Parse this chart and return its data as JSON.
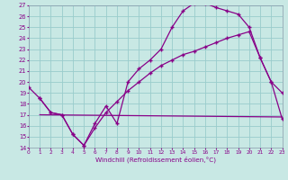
{
  "xlabel": "Windchill (Refroidissement éolien,°C)",
  "bg_color": "#c8e8e4",
  "grid_color": "#99cccc",
  "line_color": "#880088",
  "line1_x": [
    0,
    1,
    2,
    3,
    4,
    5,
    6,
    7,
    8,
    9,
    10,
    11,
    12,
    13,
    14,
    15,
    16,
    17,
    18,
    19,
    20,
    21,
    22,
    23
  ],
  "line1_y": [
    19.5,
    18.5,
    17.2,
    17.0,
    15.2,
    14.2,
    16.2,
    17.8,
    16.2,
    20.0,
    21.2,
    22.0,
    23.0,
    25.0,
    26.5,
    27.2,
    27.2,
    26.8,
    26.5,
    26.2,
    25.0,
    22.2,
    20.0,
    19.0
  ],
  "line2_x": [
    1,
    2,
    3,
    4,
    5,
    6,
    7,
    8,
    9,
    10,
    11,
    12,
    13,
    14,
    15,
    16,
    17,
    18,
    19,
    20,
    21,
    22,
    23
  ],
  "line2_y": [
    18.5,
    17.2,
    17.0,
    15.2,
    14.2,
    15.8,
    17.2,
    18.2,
    19.2,
    20.0,
    20.8,
    21.5,
    22.0,
    22.5,
    22.8,
    23.2,
    23.6,
    24.0,
    24.3,
    24.6,
    22.2,
    20.0,
    16.6
  ],
  "line3_x": [
    1,
    23
  ],
  "line3_y": [
    17.0,
    16.8
  ],
  "xlim": [
    0,
    23
  ],
  "ylim": [
    14,
    27
  ],
  "yticks": [
    14,
    15,
    16,
    17,
    18,
    19,
    20,
    21,
    22,
    23,
    24,
    25,
    26,
    27
  ],
  "xticks": [
    0,
    1,
    2,
    3,
    4,
    5,
    6,
    7,
    8,
    9,
    10,
    11,
    12,
    13,
    14,
    15,
    16,
    17,
    18,
    19,
    20,
    21,
    22,
    23
  ]
}
